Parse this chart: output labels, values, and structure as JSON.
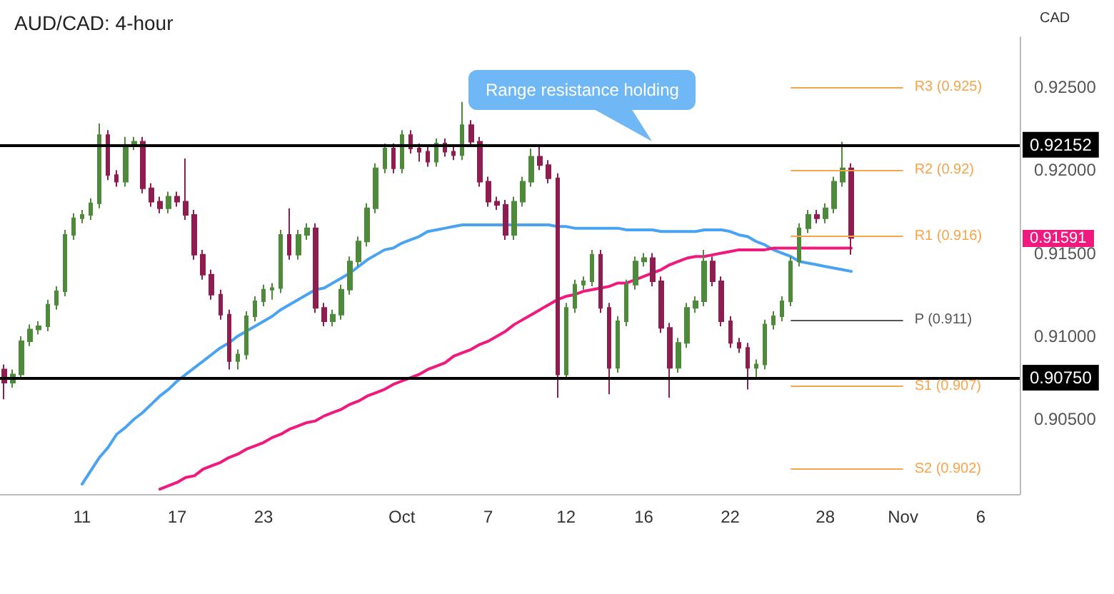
{
  "chart_data": {
    "type": "candlestick",
    "title": "AUD/CAD: 4-hour",
    "ylabel": "CAD",
    "categories": [
      null,
      null,
      null,
      null,
      null,
      null,
      null,
      null,
      null,
      "11",
      null,
      null,
      null,
      null,
      null,
      null,
      null,
      null,
      null,
      null,
      "17",
      null,
      null,
      null,
      null,
      null,
      null,
      null,
      null,
      null,
      "23",
      null,
      null,
      null,
      null,
      null,
      null,
      null,
      null,
      null,
      null,
      null,
      null,
      null,
      null,
      null,
      "Oct",
      null,
      null,
      null,
      null,
      null,
      null,
      null,
      null,
      null,
      "7",
      null,
      null,
      null,
      null,
      null,
      null,
      null,
      null,
      "12",
      null,
      null,
      null,
      null,
      null,
      null,
      null,
      null,
      "16",
      null,
      null,
      null,
      null,
      null,
      null,
      null,
      null,
      null,
      "22",
      null,
      null,
      null,
      null,
      null,
      null,
      null,
      null,
      null,
      null,
      "28",
      null,
      null,
      null,
      null,
      null,
      null,
      null,
      null,
      "Nov",
      null,
      null,
      null,
      null,
      null,
      null,
      null,
      null,
      "6",
      null,
      null,
      null,
      null
    ],
    "ohlc": [
      [
        0.908,
        0.9083,
        0.9062,
        0.9072
      ],
      [
        0.9072,
        0.908,
        0.9069,
        0.9077
      ],
      [
        0.9077,
        0.91,
        0.9074,
        0.9097
      ],
      [
        0.9097,
        0.9107,
        0.9094,
        0.9104
      ],
      [
        0.9104,
        0.9109,
        0.9101,
        0.9106
      ],
      [
        0.9106,
        0.9122,
        0.9103,
        0.9119
      ],
      [
        0.9119,
        0.913,
        0.9116,
        0.9127
      ],
      [
        0.9127,
        0.9164,
        0.9124,
        0.9161
      ],
      [
        0.9161,
        0.9174,
        0.9158,
        0.9171
      ],
      [
        0.9171,
        0.9176,
        0.9168,
        0.9173
      ],
      [
        0.9173,
        0.9183,
        0.917,
        0.918
      ],
      [
        0.918,
        0.9228,
        0.9177,
        0.9221
      ],
      [
        0.9221,
        0.9224,
        0.9194,
        0.9197
      ],
      [
        0.9197,
        0.92,
        0.919,
        0.9193
      ],
      [
        0.9193,
        0.922,
        0.919,
        0.9215
      ],
      [
        0.9215,
        0.922,
        0.9212,
        0.9217
      ],
      [
        0.9217,
        0.922,
        0.9186,
        0.9189
      ],
      [
        0.9189,
        0.9192,
        0.9178,
        0.9181
      ],
      [
        0.9181,
        0.9184,
        0.9174,
        0.9177
      ],
      [
        0.9177,
        0.9187,
        0.9174,
        0.9184
      ],
      [
        0.9184,
        0.9187,
        0.9178,
        0.9181
      ],
      [
        0.9181,
        0.9207,
        0.917,
        0.9173
      ],
      [
        0.9173,
        0.9176,
        0.9146,
        0.9149
      ],
      [
        0.9149,
        0.9152,
        0.9134,
        0.9137
      ],
      [
        0.9137,
        0.914,
        0.9122,
        0.9125
      ],
      [
        0.9125,
        0.9128,
        0.911,
        0.9113
      ],
      [
        0.9113,
        0.9116,
        0.908,
        0.9085
      ],
      [
        0.9085,
        0.9092,
        0.908,
        0.9089
      ],
      [
        0.9089,
        0.9115,
        0.9086,
        0.9112
      ],
      [
        0.9112,
        0.9124,
        0.9109,
        0.9121
      ],
      [
        0.9121,
        0.9131,
        0.9118,
        0.9128
      ],
      [
        0.9128,
        0.9132,
        0.9122,
        0.9129
      ],
      [
        0.9129,
        0.9164,
        0.9126,
        0.9161
      ],
      [
        0.9161,
        0.9177,
        0.9146,
        0.9149
      ],
      [
        0.9149,
        0.9164,
        0.9146,
        0.9161
      ],
      [
        0.9161,
        0.9168,
        0.9158,
        0.9165
      ],
      [
        0.9165,
        0.9168,
        0.9114,
        0.9117
      ],
      [
        0.9117,
        0.912,
        0.9106,
        0.9109
      ],
      [
        0.9109,
        0.9116,
        0.9106,
        0.9113
      ],
      [
        0.9113,
        0.9131,
        0.911,
        0.9128
      ],
      [
        0.9128,
        0.9148,
        0.9125,
        0.9145
      ],
      [
        0.9145,
        0.916,
        0.9142,
        0.9157
      ],
      [
        0.9157,
        0.918,
        0.9154,
        0.9177
      ],
      [
        0.9177,
        0.9204,
        0.9174,
        0.9201
      ],
      [
        0.9201,
        0.9216,
        0.9198,
        0.9213
      ],
      [
        0.9213,
        0.9216,
        0.9198,
        0.9201
      ],
      [
        0.9201,
        0.9224,
        0.9198,
        0.9221
      ],
      [
        0.9221,
        0.9224,
        0.921,
        0.9213
      ],
      [
        0.9213,
        0.9216,
        0.9205,
        0.9211
      ],
      [
        0.9211,
        0.9214,
        0.9202,
        0.9205
      ],
      [
        0.9205,
        0.9219,
        0.9202,
        0.9216
      ],
      [
        0.9216,
        0.9219,
        0.9208,
        0.9211
      ],
      [
        0.9211,
        0.9214,
        0.9206,
        0.9209
      ],
      [
        0.9209,
        0.9241,
        0.9206,
        0.9227
      ],
      [
        0.9227,
        0.923,
        0.9214,
        0.9217
      ],
      [
        0.9217,
        0.922,
        0.919,
        0.9193
      ],
      [
        0.9193,
        0.9196,
        0.9178,
        0.9181
      ],
      [
        0.9181,
        0.9184,
        0.9176,
        0.9179
      ],
      [
        0.9179,
        0.9182,
        0.9158,
        0.9161
      ],
      [
        0.9161,
        0.9184,
        0.9158,
        0.9181
      ],
      [
        0.9181,
        0.9196,
        0.9178,
        0.9193
      ],
      [
        0.9193,
        0.9213,
        0.919,
        0.9208
      ],
      [
        0.9208,
        0.9215,
        0.92,
        0.9203
      ],
      [
        0.9203,
        0.9206,
        0.9192,
        0.9195
      ],
      [
        0.9195,
        0.9198,
        0.9063,
        0.9077
      ],
      [
        0.9077,
        0.912,
        0.9074,
        0.9117
      ],
      [
        0.9117,
        0.9134,
        0.9114,
        0.9131
      ],
      [
        0.9131,
        0.9136,
        0.9128,
        0.9133
      ],
      [
        0.9133,
        0.9152,
        0.913,
        0.9149
      ],
      [
        0.9149,
        0.9152,
        0.9114,
        0.9117
      ],
      [
        0.9117,
        0.912,
        0.9065,
        0.9081
      ],
      [
        0.9081,
        0.9112,
        0.9078,
        0.9109
      ],
      [
        0.9109,
        0.9134,
        0.9106,
        0.9131
      ],
      [
        0.9131,
        0.9148,
        0.9128,
        0.9145
      ],
      [
        0.9145,
        0.915,
        0.9142,
        0.9147
      ],
      [
        0.9147,
        0.915,
        0.913,
        0.9133
      ],
      [
        0.9133,
        0.9136,
        0.9102,
        0.9105
      ],
      [
        0.9105,
        0.9108,
        0.9063,
        0.9081
      ],
      [
        0.9081,
        0.9099,
        0.9078,
        0.9096
      ],
      [
        0.9096,
        0.912,
        0.9093,
        0.9117
      ],
      [
        0.9117,
        0.9124,
        0.9114,
        0.9121
      ],
      [
        0.9121,
        0.9152,
        0.9118,
        0.9145
      ],
      [
        0.9145,
        0.9148,
        0.913,
        0.9133
      ],
      [
        0.9133,
        0.9136,
        0.9106,
        0.9109
      ],
      [
        0.9109,
        0.9112,
        0.9093,
        0.9096
      ],
      [
        0.9096,
        0.9099,
        0.909,
        0.9093
      ],
      [
        0.9093,
        0.9096,
        0.9068,
        0.9081
      ],
      [
        0.9081,
        0.9086,
        0.9075,
        0.9083
      ],
      [
        0.9083,
        0.911,
        0.908,
        0.9107
      ],
      [
        0.9107,
        0.9115,
        0.9104,
        0.9112
      ],
      [
        0.9112,
        0.9124,
        0.9109,
        0.9121
      ],
      [
        0.9121,
        0.9148,
        0.9118,
        0.9145
      ],
      [
        0.9145,
        0.9168,
        0.9142,
        0.9165
      ],
      [
        0.9165,
        0.9176,
        0.9162,
        0.9173
      ],
      [
        0.9173,
        0.9176,
        0.9168,
        0.9171
      ],
      [
        0.9171,
        0.918,
        0.9168,
        0.9177
      ],
      [
        0.9177,
        0.9196,
        0.9174,
        0.9193
      ],
      [
        0.9193,
        0.9217,
        0.919,
        0.9201
      ],
      [
        0.9201,
        0.9204,
        0.9149,
        0.91591
      ],
      null,
      null,
      null,
      null,
      null,
      null,
      null,
      null,
      null,
      null,
      null,
      null,
      null,
      null,
      null,
      null,
      null,
      null,
      null
    ],
    "colors": [
      "#8c1f4f",
      "#4f8a3c",
      "#4f8a3c",
      "#4f8a3c",
      "#4f8a3c",
      "#4f8a3c",
      "#4f8a3c",
      "#4f8a3c",
      "#4f8a3c",
      "#4f8a3c",
      "#4f8a3c",
      "#4f8a3c",
      "#8c1f4f",
      "#8c1f4f",
      "#4f8a3c",
      "#4f8a3c",
      "#8c1f4f",
      "#8c1f4f",
      "#8c1f4f",
      "#4f8a3c",
      "#8c1f4f",
      "#8c1f4f",
      "#8c1f4f",
      "#8c1f4f",
      "#8c1f4f",
      "#8c1f4f",
      "#8c1f4f",
      "#4f8a3c",
      "#4f8a3c",
      "#4f8a3c",
      "#4f8a3c",
      "#4f8a3c",
      "#4f8a3c",
      "#8c1f4f",
      "#4f8a3c",
      "#4f8a3c",
      "#8c1f4f",
      "#8c1f4f",
      "#4f8a3c",
      "#4f8a3c",
      "#4f8a3c",
      "#4f8a3c",
      "#4f8a3c",
      "#4f8a3c",
      "#4f8a3c",
      "#8c1f4f",
      "#4f8a3c",
      "#8c1f4f",
      "#8c1f4f",
      "#8c1f4f",
      "#4f8a3c",
      "#8c1f4f",
      "#8c1f4f",
      "#4f8a3c",
      "#8c1f4f",
      "#8c1f4f",
      "#8c1f4f",
      "#8c1f4f",
      "#8c1f4f",
      "#4f8a3c",
      "#4f8a3c",
      "#4f8a3c",
      "#8c1f4f",
      "#8c1f4f",
      "#8c1f4f",
      "#4f8a3c",
      "#4f8a3c",
      "#4f8a3c",
      "#4f8a3c",
      "#8c1f4f",
      "#8c1f4f",
      "#4f8a3c",
      "#4f8a3c",
      "#4f8a3c",
      "#4f8a3c",
      "#8c1f4f",
      "#8c1f4f",
      "#8c1f4f",
      "#4f8a3c",
      "#4f8a3c",
      "#4f8a3c",
      "#4f8a3c",
      "#8c1f4f",
      "#8c1f4f",
      "#8c1f4f",
      "#8c1f4f",
      "#8c1f4f",
      "#4f8a3c",
      "#4f8a3c",
      "#4f8a3c",
      "#4f8a3c",
      "#4f8a3c",
      "#4f8a3c",
      "#4f8a3c",
      "#8c1f4f",
      "#4f8a3c",
      "#4f8a3c",
      "#4f8a3c",
      "#8c1f4f",
      null,
      null,
      null,
      null,
      null,
      null,
      null,
      null,
      null,
      null,
      null,
      null,
      null,
      null,
      null,
      null,
      null,
      null,
      null
    ],
    "series": [
      {
        "type": "line",
        "color": "#4aa3f2",
        "values": [
          null,
          null,
          null,
          null,
          null,
          null,
          null,
          null,
          null,
          0.9011,
          0.9019,
          0.9027,
          0.9033,
          0.9041,
          0.9045,
          0.905,
          0.9054,
          0.9059,
          0.9064,
          0.9068,
          0.9073,
          0.9077,
          0.9081,
          0.9085,
          0.9089,
          0.9093,
          0.9096,
          0.91,
          0.9103,
          0.9106,
          0.9109,
          0.9112,
          0.9116,
          0.9119,
          0.9122,
          0.9125,
          0.9128,
          0.9129,
          0.9132,
          0.9135,
          0.9138,
          0.9142,
          0.9146,
          0.9149,
          0.9152,
          0.9153,
          0.9156,
          0.9158,
          0.916,
          0.9163,
          0.9164,
          0.9165,
          0.9166,
          0.9167,
          0.9167,
          0.9167,
          0.9167,
          0.9167,
          0.9167,
          0.9167,
          0.9167,
          0.9167,
          0.9167,
          0.9167,
          0.9166,
          0.9166,
          0.9165,
          0.9165,
          0.9165,
          0.9165,
          0.9165,
          0.9165,
          0.9164,
          0.9164,
          0.9164,
          0.9164,
          0.9163,
          0.9163,
          0.9163,
          0.9163,
          0.9163,
          0.9164,
          0.9164,
          0.9164,
          0.9163,
          0.9161,
          0.916,
          0.9157,
          0.9155,
          0.9152,
          0.915,
          0.9148,
          0.9145,
          0.9144,
          0.9143,
          0.9142,
          0.9141,
          0.914,
          0.9139,
          null,
          null,
          null,
          null,
          null,
          null,
          null,
          null,
          null,
          null,
          null,
          null,
          null,
          null,
          null,
          null,
          null,
          null,
          null
        ]
      },
      {
        "type": "line",
        "color": "#f0197d",
        "values": [
          null,
          null,
          null,
          null,
          null,
          null,
          null,
          null,
          null,
          null,
          null,
          null,
          null,
          null,
          null,
          null,
          null,
          null,
          0.9008,
          0.901,
          0.9012,
          0.9015,
          0.9016,
          0.902,
          0.9022,
          0.9024,
          0.9027,
          0.9029,
          0.9032,
          0.9034,
          0.9036,
          0.9039,
          0.9041,
          0.9044,
          0.9046,
          0.9048,
          0.9049,
          0.9052,
          0.9054,
          0.9056,
          0.9059,
          0.9061,
          0.9064,
          0.9066,
          0.9068,
          0.9071,
          0.9073,
          0.9075,
          0.9077,
          0.908,
          0.9082,
          0.9084,
          0.9088,
          0.909,
          0.9092,
          0.9095,
          0.9097,
          0.91,
          0.9103,
          0.9107,
          0.911,
          0.9113,
          0.9116,
          0.9119,
          0.9122,
          0.9124,
          0.9125,
          0.9127,
          0.9128,
          0.9129,
          0.913,
          0.9132,
          0.9132,
          0.9134,
          0.9136,
          0.9138,
          0.914,
          0.9143,
          0.9145,
          0.9147,
          0.9148,
          0.9148,
          0.9149,
          0.915,
          0.9151,
          0.9152,
          0.9152,
          0.9152,
          0.9152,
          0.9153,
          0.9153,
          0.9153,
          0.9153,
          0.9153,
          0.9153,
          0.9153,
          0.9153,
          0.9153,
          0.9153,
          null,
          null,
          null,
          null,
          null,
          null,
          null,
          null,
          null,
          null,
          null,
          null,
          null,
          null,
          null,
          null,
          null,
          null,
          null
        ]
      }
    ],
    "marker": "none",
    "ylim": [
      0.9005,
      0.928
    ],
    "yticks": [
      {
        "value": 0.905,
        "label": "0.90500"
      },
      {
        "value": 0.91,
        "label": "0.91000"
      },
      {
        "value": 0.915,
        "label": "0.91500"
      },
      {
        "value": 0.92,
        "label": "0.92000"
      },
      {
        "value": 0.925,
        "label": "0.92500"
      }
    ],
    "ref_lines": [
      {
        "axis": "y",
        "value": 0.92152,
        "label": "0.92152",
        "color": "#000000"
      },
      {
        "axis": "y",
        "value": 0.9075,
        "label": "0.90750",
        "color": "#000000"
      },
      {
        "axis": "y",
        "value": 0.925,
        "label": "R3 (0.925)",
        "color": "#f7a44a"
      },
      {
        "axis": "y",
        "value": 0.92,
        "label": "R2 (0.92)",
        "color": "#f7a44a"
      },
      {
        "axis": "y",
        "value": 0.916,
        "label": "R1 (0.916)",
        "color": "#f7a44a"
      },
      {
        "axis": "y",
        "value": 0.911,
        "label": "P (0.911)",
        "color": "#555555"
      },
      {
        "axis": "y",
        "value": 0.907,
        "label": "S1 (0.907)",
        "color": "#f7a44a"
      },
      {
        "axis": "y",
        "value": 0.902,
        "label": "S2 (0.902)",
        "color": "#f7a44a"
      }
    ],
    "annotations": [
      "Range resistance holding",
      "0.91591"
    ]
  }
}
